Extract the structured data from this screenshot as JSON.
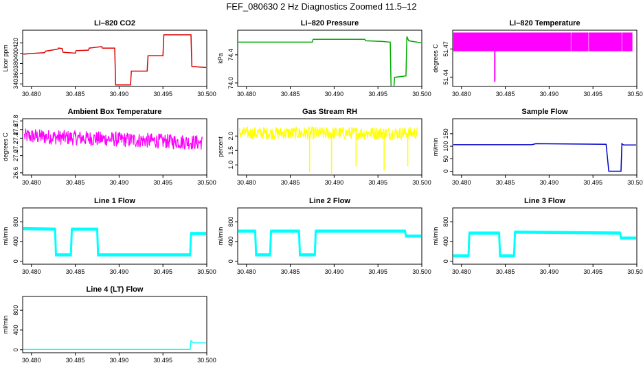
{
  "page": {
    "title": "FEF_080630  2 Hz Diagnostics Zoomed 11.5–12"
  },
  "chart_data": [
    {
      "type": "line",
      "id": "co2",
      "title": "Li–820 CO2",
      "ylabel": "Licor ppm",
      "color": "#dd0000",
      "xlim": [
        30.479,
        30.5
      ],
      "ylim": [
        335,
        445
      ],
      "xticks": [
        "30.480",
        "30.485",
        "30.490",
        "30.495",
        "30.500"
      ],
      "yticks": [
        340,
        360,
        380,
        400,
        420
      ],
      "x": [
        30.479,
        30.4805,
        30.4815,
        30.4816,
        30.483,
        30.4831,
        30.4835,
        30.4836,
        30.485,
        30.4851,
        30.4865,
        30.4866,
        30.488,
        30.4881,
        30.4895,
        30.4896,
        30.4913,
        30.4914,
        30.4932,
        30.4933,
        30.495,
        30.4951,
        30.4982,
        30.4983,
        30.5
      ],
      "y": [
        398,
        400,
        401,
        404,
        408,
        410,
        409,
        402,
        400,
        405,
        406,
        410,
        413,
        410,
        410,
        338,
        338,
        365,
        365,
        395,
        395,
        436,
        436,
        374,
        372
      ]
    },
    {
      "type": "line",
      "id": "pressure",
      "title": "Li–820 Pressure",
      "ylabel": "kPa",
      "color": "#00aa00",
      "xlim": [
        30.479,
        30.5
      ],
      "ylim": [
        73.95,
        74.75
      ],
      "xticks": [
        "30.480",
        "30.485",
        "30.490",
        "30.495",
        "30.500"
      ],
      "yticks": [
        74.0,
        74.4
      ],
      "ytickLabels": [
        "74.0",
        "74.4"
      ],
      "x": [
        30.479,
        30.486,
        30.4875,
        30.4876,
        30.4935,
        30.4936,
        30.4955,
        30.4964,
        30.4965,
        30.4968,
        30.4969,
        30.4982,
        30.4983,
        30.4985,
        30.5
      ],
      "y": [
        74.58,
        74.58,
        74.58,
        74.62,
        74.62,
        74.6,
        74.59,
        74.58,
        73.92,
        73.92,
        74.08,
        74.1,
        74.66,
        74.6,
        74.57
      ]
    },
    {
      "type": "band",
      "id": "temperature",
      "title": "Li–820 Temperature",
      "ylabel": "degrees C",
      "color": "#ff00ff",
      "xlim": [
        30.479,
        30.5
      ],
      "ylim": [
        51.43,
        51.49
      ],
      "xticks": [
        "30.480",
        "30.485",
        "30.490",
        "30.495",
        "30.500"
      ],
      "yticks": [
        51.44,
        51.47
      ],
      "ytickLabels": [
        "51.44",
        "51.47"
      ],
      "band": [
        30.479,
        30.4995,
        51.4675,
        51.4875
      ],
      "spikes": [
        30.4838,
        51.435
      ]
    },
    {
      "type": "noise",
      "id": "ambient",
      "title": "Ambient Box Temperature",
      "ylabel": "degrees C",
      "color": "#ff00ff",
      "xlim": [
        30.479,
        30.5
      ],
      "ylim": [
        26.55,
        27.85
      ],
      "xticks": [
        "30.480",
        "30.485",
        "30.490",
        "30.495",
        "30.500"
      ],
      "yticks": [
        26.6,
        27.0,
        27.2,
        27.4,
        27.6,
        27.8
      ],
      "ytickLabels": [
        "26.6",
        "27.0",
        "27.2",
        "27.4",
        "27.6",
        "27.8"
      ],
      "centerStart": 27.45,
      "centerEnd": 27.3,
      "spread": 0.35
    },
    {
      "type": "noise",
      "id": "rh",
      "title": "Gas Stream RH",
      "ylabel": "percent",
      "color": "#ffff00",
      "xlim": [
        30.479,
        30.5
      ],
      "ylim": [
        0.65,
        2.6
      ],
      "xticks": [
        "30.480",
        "30.485",
        "30.490",
        "30.495",
        "30.500"
      ],
      "yticks": [
        1.0,
        1.5,
        2.0
      ],
      "ytickLabels": [
        "1.0",
        "1.5",
        "2.0"
      ],
      "centerStart": 2.1,
      "centerEnd": 2.1,
      "spread": 0.45,
      "drops": [
        [
          30.4872,
          0.75
        ],
        [
          30.4897,
          0.7
        ],
        [
          30.4925,
          0.95
        ],
        [
          30.4957,
          0.8
        ],
        [
          30.4984,
          0.95
        ]
      ]
    },
    {
      "type": "line",
      "id": "sample",
      "title": "Sample Flow",
      "ylabel": "ml/min",
      "color": "#0000cc",
      "xlim": [
        30.479,
        30.5
      ],
      "ylim": [
        -15,
        210
      ],
      "xticks": [
        "30.480",
        "30.485",
        "30.490",
        "30.495",
        "30.500"
      ],
      "yticks": [
        0,
        50,
        100,
        150
      ],
      "x": [
        30.479,
        30.488,
        30.4885,
        30.4965,
        30.4968,
        30.4982,
        30.4983,
        30.4985,
        30.5
      ],
      "y": [
        106,
        106,
        110,
        108,
        0,
        0,
        110,
        105,
        105
      ]
    },
    {
      "type": "line",
      "id": "line1",
      "title": "Line 1 Flow",
      "ylabel": "ml/min",
      "color": "#00ffff",
      "xlim": [
        30.479,
        30.5
      ],
      "ylim": [
        -60,
        1080
      ],
      "xticks": [
        "30.480",
        "30.485",
        "30.490",
        "30.495",
        "30.500"
      ],
      "yticks": [
        0,
        400,
        800
      ],
      "x": [
        30.479,
        30.4827,
        30.4828,
        30.4845,
        30.4846,
        30.4875,
        30.4876,
        30.4981,
        30.4982,
        30.5
      ],
      "y": [
        650,
        640,
        120,
        120,
        640,
        640,
        120,
        120,
        550,
        550
      ],
      "thick": true
    },
    {
      "type": "line",
      "id": "line2",
      "title": "Line 2 Flow",
      "ylabel": "ml/min",
      "color": "#00ffff",
      "xlim": [
        30.479,
        30.5
      ],
      "ylim": [
        -60,
        1080
      ],
      "xticks": [
        "30.480",
        "30.485",
        "30.490",
        "30.495",
        "30.500"
      ],
      "yticks": [
        0,
        400,
        800
      ],
      "x": [
        30.479,
        30.481,
        30.4811,
        30.4827,
        30.4828,
        30.486,
        30.4861,
        30.4878,
        30.4879,
        30.4981,
        30.4982,
        30.5
      ],
      "y": [
        600,
        600,
        120,
        120,
        600,
        600,
        120,
        120,
        600,
        600,
        500,
        500
      ],
      "thick": true
    },
    {
      "type": "line",
      "id": "line3",
      "title": "Line 3 Flow",
      "ylabel": "ml/min",
      "color": "#00ffff",
      "xlim": [
        30.479,
        30.5
      ],
      "ylim": [
        -60,
        1080
      ],
      "xticks": [
        "30.480",
        "30.485",
        "30.490",
        "30.495",
        "30.500"
      ],
      "yticks": [
        0,
        400,
        800
      ],
      "x": [
        30.479,
        30.4808,
        30.4809,
        30.4843,
        30.4844,
        30.486,
        30.4861,
        30.4981,
        30.4982,
        30.5
      ],
      "y": [
        100,
        100,
        560,
        560,
        100,
        100,
        580,
        560,
        460,
        460
      ],
      "thick": true
    },
    {
      "type": "line",
      "id": "line4",
      "title": "Line 4 (LT) Flow",
      "ylabel": "ml/min",
      "color": "#00ffff",
      "xlim": [
        30.479,
        30.5
      ],
      "ylim": [
        -60,
        1080
      ],
      "xticks": [
        "30.480",
        "30.485",
        "30.490",
        "30.495",
        "30.500"
      ],
      "yticks": [
        0,
        400,
        800
      ],
      "x": [
        30.479,
        30.4981,
        30.4982,
        30.4985,
        30.5
      ],
      "y": [
        5,
        5,
        180,
        140,
        140
      ]
    }
  ]
}
